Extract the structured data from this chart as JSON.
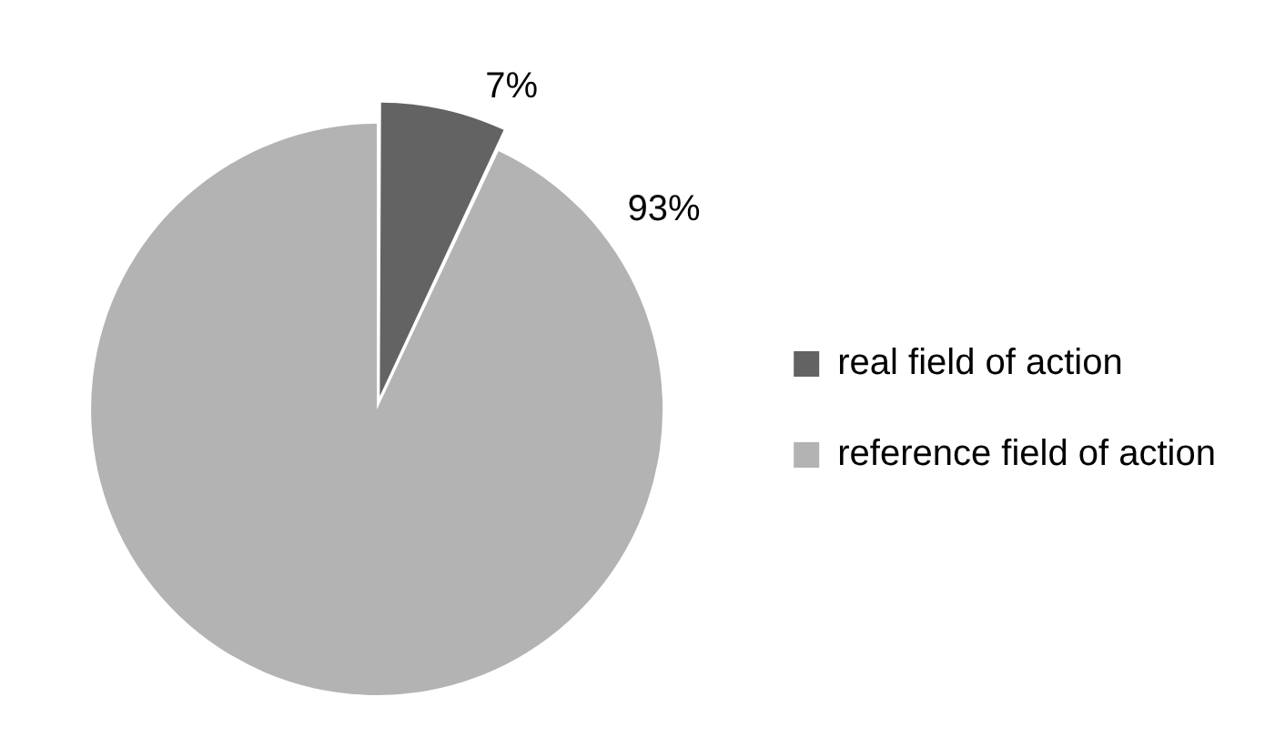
{
  "chart_data": {
    "type": "pie",
    "categories": [
      "real field of action",
      "reference field of action"
    ],
    "values": [
      7,
      93
    ],
    "colors": [
      "#636363",
      "#b3b3b3"
    ],
    "value_labels": [
      "7%",
      "93%"
    ],
    "legend": "right"
  }
}
